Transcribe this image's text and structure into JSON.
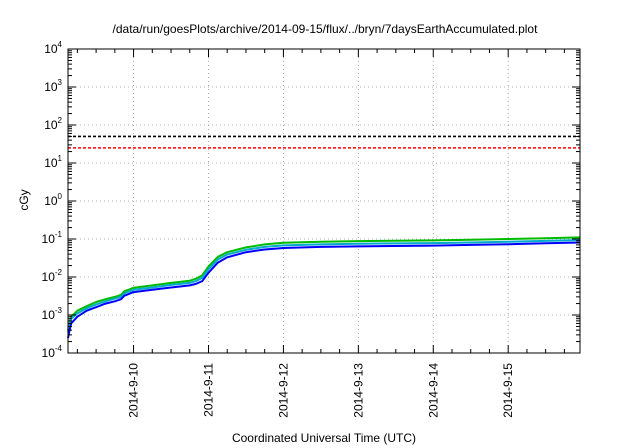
{
  "chart_data": {
    "type": "line",
    "title": "/data/run/goesPlots/archive/2014-09-15/flux/../bryn/7daysEarthAccumulated.plot",
    "xlabel": "Coordinated Universal Time (UTC)",
    "ylabel": "cGy",
    "yscale": "log",
    "ylim": [
      0.0001,
      10000
    ],
    "xlim": [
      "2014-09-09T03:00",
      "2014-09-15T23:00"
    ],
    "grid": true,
    "y_ticks": [
      {
        "base": "10",
        "exp": "-4",
        "value": 0.0001
      },
      {
        "base": "10",
        "exp": "-3",
        "value": 0.001
      },
      {
        "base": "10",
        "exp": "-2",
        "value": 0.01
      },
      {
        "base": "10",
        "exp": "-1",
        "value": 0.1
      },
      {
        "base": "10",
        "exp": "0",
        "value": 1
      },
      {
        "base": "10",
        "exp": "1",
        "value": 10
      },
      {
        "base": "10",
        "exp": "2",
        "value": 100
      },
      {
        "base": "10",
        "exp": "3",
        "value": 1000
      },
      {
        "base": "10",
        "exp": "4",
        "value": 10000
      }
    ],
    "x_ticks": [
      {
        "label": "2014-9-10",
        "value": "2014-09-10T00:00"
      },
      {
        "label": "2014-9-11",
        "value": "2014-09-11T00:00"
      },
      {
        "label": "2014-9-12",
        "value": "2014-09-12T00:00"
      },
      {
        "label": "2014-9-13",
        "value": "2014-09-13T00:00"
      },
      {
        "label": "2014-9-14",
        "value": "2014-09-14T00:00"
      },
      {
        "label": "2014-9-15",
        "value": "2014-09-15T00:00"
      }
    ],
    "thresholds": [
      {
        "value": 50,
        "color": "#000000",
        "style": "dashed"
      },
      {
        "value": 25,
        "color": "#ff0000",
        "style": "dashed"
      }
    ],
    "series": [
      {
        "color": "#00bb00",
        "x": [
          "2014-09-09T03:00",
          "2014-09-09T04:00",
          "2014-09-09T06:00",
          "2014-09-09T09:00",
          "2014-09-09T12:00",
          "2014-09-09T15:00",
          "2014-09-09T18:00",
          "2014-09-09T20:00",
          "2014-09-09T21:00",
          "2014-09-10T00:00",
          "2014-09-10T06:00",
          "2014-09-10T12:00",
          "2014-09-10T18:00",
          "2014-09-10T20:00",
          "2014-09-10T22:00",
          "2014-09-11T00:00",
          "2014-09-11T03:00",
          "2014-09-11T06:00",
          "2014-09-11T12:00",
          "2014-09-11T18:00",
          "2014-09-12T00:00",
          "2014-09-12T12:00",
          "2014-09-13T00:00",
          "2014-09-14T00:00",
          "2014-09-14T12:00",
          "2014-09-15T00:00",
          "2014-09-15T12:00",
          "2014-09-15T23:00"
        ],
        "values": [
          0.0004,
          0.0009,
          0.0013,
          0.0017,
          0.0022,
          0.0026,
          0.003,
          0.0034,
          0.0042,
          0.0052,
          0.006,
          0.007,
          0.008,
          0.009,
          0.011,
          0.019,
          0.034,
          0.045,
          0.06,
          0.072,
          0.08,
          0.085,
          0.088,
          0.092,
          0.095,
          0.1,
          0.105,
          0.11
        ]
      },
      {
        "color": "#00aacc",
        "x": [
          "2014-09-09T03:00",
          "2014-09-09T04:00",
          "2014-09-09T06:00",
          "2014-09-09T09:00",
          "2014-09-09T12:00",
          "2014-09-09T15:00",
          "2014-09-09T18:00",
          "2014-09-09T20:00",
          "2014-09-09T21:00",
          "2014-09-10T00:00",
          "2014-09-10T06:00",
          "2014-09-10T12:00",
          "2014-09-10T18:00",
          "2014-09-10T20:00",
          "2014-09-10T22:00",
          "2014-09-11T00:00",
          "2014-09-11T03:00",
          "2014-09-11T06:00",
          "2014-09-11T12:00",
          "2014-09-11T18:00",
          "2014-09-12T00:00",
          "2014-09-12T12:00",
          "2014-09-13T00:00",
          "2014-09-14T00:00",
          "2014-09-14T12:00",
          "2014-09-15T00:00",
          "2014-09-15T12:00",
          "2014-09-15T23:00"
        ],
        "values": [
          0.00035,
          0.0008,
          0.0011,
          0.0015,
          0.0019,
          0.0023,
          0.0027,
          0.003,
          0.0037,
          0.0046,
          0.0053,
          0.0062,
          0.007,
          0.0078,
          0.0095,
          0.016,
          0.029,
          0.039,
          0.052,
          0.062,
          0.068,
          0.072,
          0.075,
          0.078,
          0.081,
          0.085,
          0.089,
          0.094
        ]
      },
      {
        "color": "#0000ff",
        "x": [
          "2014-09-09T03:00",
          "2014-09-09T04:00",
          "2014-09-09T06:00",
          "2014-09-09T09:00",
          "2014-09-09T12:00",
          "2014-09-09T15:00",
          "2014-09-09T18:00",
          "2014-09-09T20:00",
          "2014-09-09T21:00",
          "2014-09-10T00:00",
          "2014-09-10T06:00",
          "2014-09-10T12:00",
          "2014-09-10T18:00",
          "2014-09-10T20:00",
          "2014-09-10T22:00",
          "2014-09-11T00:00",
          "2014-09-11T03:00",
          "2014-09-11T06:00",
          "2014-09-11T12:00",
          "2014-09-11T18:00",
          "2014-09-12T00:00",
          "2014-09-12T12:00",
          "2014-09-13T00:00",
          "2014-09-14T00:00",
          "2014-09-14T12:00",
          "2014-09-15T00:00",
          "2014-09-15T12:00",
          "2014-09-15T23:00"
        ],
        "values": [
          0.00025,
          0.0006,
          0.0009,
          0.0013,
          0.0016,
          0.002,
          0.0023,
          0.0026,
          0.0032,
          0.004,
          0.0046,
          0.0053,
          0.006,
          0.0066,
          0.0078,
          0.013,
          0.024,
          0.033,
          0.045,
          0.053,
          0.058,
          0.062,
          0.064,
          0.067,
          0.07,
          0.073,
          0.077,
          0.081
        ]
      }
    ]
  }
}
